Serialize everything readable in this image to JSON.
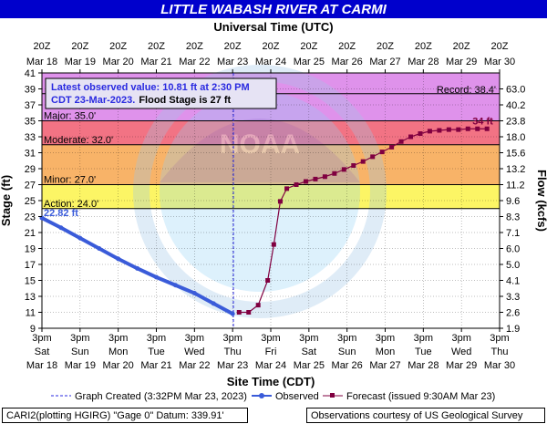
{
  "title": "LITTLE WABASH RIVER AT CARMI",
  "top_axis_title": "Universal Time (UTC)",
  "bottom_axis_title": "Site Time (CDT)",
  "left_axis_title": "Stage (ft)",
  "right_axis_title": "Flow (kcfs)",
  "info_box": {
    "line1": "Latest observed value: 10.81 ft at 2:30 PM",
    "line2a": "CDT 23-Mar-2023.",
    "line2b": "Flood Stage is 27 ft"
  },
  "legend": {
    "graph_created": "Graph Created (3:32PM Mar 23, 2023)",
    "observed": "Observed",
    "forecast": "Forecast (issued 9:30AM Mar 23)"
  },
  "footer": {
    "left": "CARI2(plotting HGIRG) \"Gage 0\" Datum: 339.91'",
    "right": "Observations courtesy of US Geological Survey"
  },
  "colors": {
    "title_bg": "#0000cc",
    "record_band": "#d97fe8",
    "major_band": "#f05a6e",
    "moderate_band": "#f7a64e",
    "minor_band": "#fcf34a",
    "observed_line": "#3a5bd9",
    "forecast_line": "#800040"
  },
  "chart_data": {
    "type": "line",
    "y_range": [
      9,
      41
    ],
    "y_ticks": [
      "9",
      "11",
      "13",
      "15",
      "17",
      "19",
      "21",
      "23",
      "25",
      "27",
      "29",
      "31",
      "33",
      "35",
      "37",
      "39",
      "41"
    ],
    "flow_ticks": [
      "1.9",
      "2.6",
      "3.3",
      "4.1",
      "5.0",
      "6.0",
      "7.1",
      "8.3",
      "9.6",
      "11.2",
      "13.2",
      "15.6",
      "18.0",
      "23.8",
      "40.2",
      "63.0"
    ],
    "flow_tick_stages": [
      9,
      11,
      13,
      15,
      17,
      19,
      21,
      23,
      25,
      27,
      29,
      31,
      33,
      35,
      37,
      39
    ],
    "x_ticks_utc": [
      {
        "hour": "20Z",
        "date": "Mar 18"
      },
      {
        "hour": "20Z",
        "date": "Mar 19"
      },
      {
        "hour": "20Z",
        "date": "Mar 20"
      },
      {
        "hour": "20Z",
        "date": "Mar 21"
      },
      {
        "hour": "20Z",
        "date": "Mar 22"
      },
      {
        "hour": "20Z",
        "date": "Mar 23"
      },
      {
        "hour": "20Z",
        "date": "Mar 24"
      },
      {
        "hour": "20Z",
        "date": "Mar 25"
      },
      {
        "hour": "20Z",
        "date": "Mar 26"
      },
      {
        "hour": "20Z",
        "date": "Mar 27"
      },
      {
        "hour": "20Z",
        "date": "Mar 28"
      },
      {
        "hour": "20Z",
        "date": "Mar 29"
      },
      {
        "hour": "20Z",
        "date": "Mar 30"
      }
    ],
    "x_ticks_local": [
      {
        "time": "3pm",
        "day": "Sat",
        "date": "Mar 18"
      },
      {
        "time": "3pm",
        "day": "Sun",
        "date": "Mar 19"
      },
      {
        "time": "3pm",
        "day": "Mon",
        "date": "Mar 20"
      },
      {
        "time": "3pm",
        "day": "Tue",
        "date": "Mar 21"
      },
      {
        "time": "3pm",
        "day": "Wed",
        "date": "Mar 22"
      },
      {
        "time": "3pm",
        "day": "Thu",
        "date": "Mar 23"
      },
      {
        "time": "3pm",
        "day": "Fri",
        "date": "Mar 24"
      },
      {
        "time": "3pm",
        "day": "Sat",
        "date": "Mar 25"
      },
      {
        "time": "3pm",
        "day": "Sun",
        "date": "Mar 26"
      },
      {
        "time": "3pm",
        "day": "Mon",
        "date": "Mar 27"
      },
      {
        "time": "3pm",
        "day": "Tue",
        "date": "Mar 28"
      },
      {
        "time": "3pm",
        "day": "Wed",
        "date": "Mar 29"
      },
      {
        "time": "3pm",
        "day": "Thu",
        "date": "Mar 30"
      }
    ],
    "flood_categories": [
      {
        "name": "Record",
        "label": "Record: 38.4'",
        "stage": 38.4
      },
      {
        "name": "Major",
        "label": "Major: 35.0'",
        "stage": 35.0
      },
      {
        "name": "Moderate",
        "label": "Moderate: 32.0'",
        "stage": 32.0
      },
      {
        "name": "Minor",
        "label": "Minor: 27.0'",
        "stage": 27.0
      },
      {
        "name": "Action",
        "label": "Action: 24.0'",
        "stage": 24.0
      }
    ],
    "observed_label": "22.82 ft",
    "forecast_label": "34 ft",
    "graph_created_day": 5.02,
    "observed": {
      "x_days": [
        0,
        0.5,
        1,
        1.5,
        2,
        2.5,
        3,
        3.5,
        4,
        4.5,
        5.0
      ],
      "y_ft": [
        22.82,
        21.6,
        20.3,
        19.0,
        17.7,
        16.5,
        15.4,
        14.4,
        13.4,
        12.1,
        10.81
      ]
    },
    "forecast": {
      "x_days": [
        5.17,
        5.42,
        5.67,
        5.92,
        6.08,
        6.25,
        6.42,
        6.67,
        6.92,
        7.17,
        7.42,
        7.67,
        7.92,
        8.17,
        8.42,
        8.67,
        8.92,
        9.17,
        9.42,
        9.67,
        9.92,
        10.17,
        10.42,
        10.67,
        10.92,
        11.17,
        11.42,
        11.67
      ],
      "y_ft": [
        11.0,
        11.0,
        11.9,
        15.0,
        19.5,
        24.9,
        26.5,
        27.0,
        27.4,
        27.7,
        28.0,
        28.4,
        28.9,
        29.4,
        29.9,
        30.5,
        31.1,
        31.7,
        32.4,
        33.0,
        33.4,
        33.7,
        33.8,
        33.9,
        33.9,
        34.0,
        34.0,
        34.0
      ]
    }
  }
}
